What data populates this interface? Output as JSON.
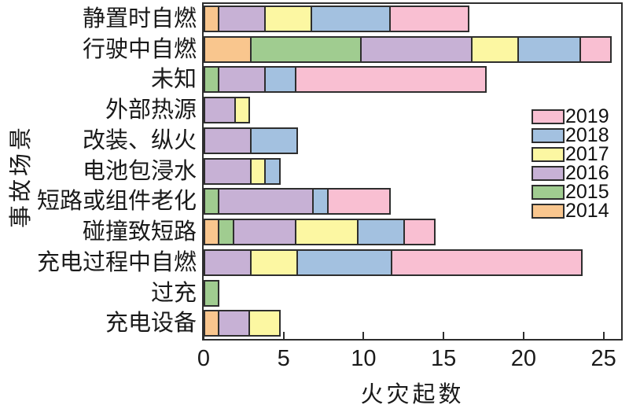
{
  "chart_data": {
    "type": "bar",
    "orientation": "horizontal",
    "stacked": true,
    "title": "",
    "xlabel": "火灾起数",
    "ylabel": "事故场景",
    "xlim": [
      0,
      26.1
    ],
    "xticks": [
      0,
      5,
      10,
      15,
      20,
      25
    ],
    "grid": false,
    "legend_position": "right-inside",
    "legend_order": [
      "2019",
      "2018",
      "2017",
      "2016",
      "2015",
      "2014"
    ],
    "categories": [
      "静置时自燃",
      "行驶中自燃",
      "未知",
      "外部热源",
      "改装、纵火",
      "电池包浸水",
      "短路或组件老化",
      "碰撞致短路",
      "充电过程中自燃",
      "过充",
      "充电设备"
    ],
    "series": [
      {
        "name": "2014",
        "color": "#F9C68E",
        "values": [
          1,
          3,
          0,
          0,
          0,
          0,
          0,
          1,
          0,
          0,
          1
        ]
      },
      {
        "name": "2015",
        "color": "#A0CC90",
        "values": [
          0,
          7,
          1,
          0,
          0,
          0,
          1,
          1,
          0,
          1,
          0
        ]
      },
      {
        "name": "2016",
        "color": "#C7B1D5",
        "values": [
          3,
          7,
          3,
          2,
          3,
          3,
          6,
          4,
          3,
          0,
          2
        ]
      },
      {
        "name": "2017",
        "color": "#FCF7A2",
        "values": [
          3,
          3,
          0,
          1,
          0,
          1,
          0,
          4,
          3,
          0,
          2
        ]
      },
      {
        "name": "2018",
        "color": "#A3C1E0",
        "values": [
          5,
          4,
          2,
          0,
          3,
          1,
          1,
          3,
          6,
          0,
          0
        ]
      },
      {
        "name": "2019",
        "color": "#F9BFD2",
        "values": [
          5,
          2,
          12,
          0,
          0,
          0,
          4,
          2,
          12,
          0,
          0
        ]
      }
    ],
    "totals": [
      17,
      26,
      18,
      3,
      6,
      5,
      12,
      15,
      24,
      1,
      5
    ],
    "border_color": "#2e2e2e",
    "text_color": "#1a1a1a"
  }
}
